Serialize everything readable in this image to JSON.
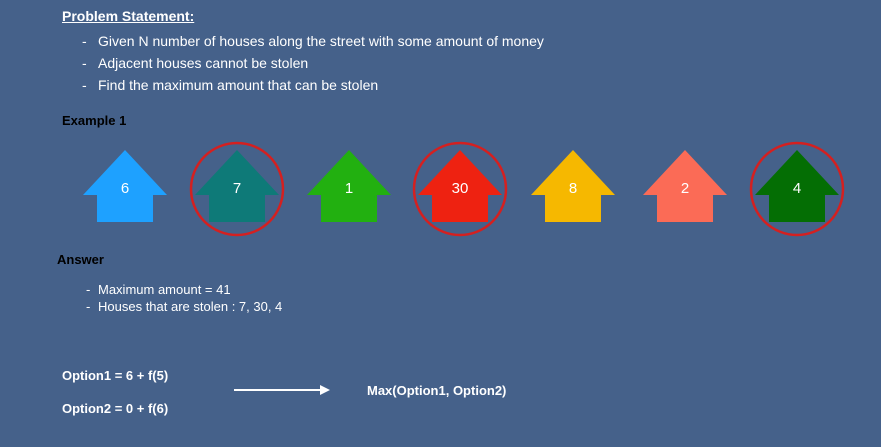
{
  "problem": {
    "title": "Problem Statement:",
    "bullets": [
      "Given N number of houses along the street with some amount of money",
      "Adjacent houses cannot be stolen",
      "Find the maximum amount that can be stolen"
    ]
  },
  "example": {
    "title": "Example 1",
    "houses": [
      {
        "value": "6",
        "color": "#1ea1ff",
        "circled": false
      },
      {
        "value": "7",
        "color": "#0e7a78",
        "circled": true
      },
      {
        "value": "1",
        "color": "#22b010",
        "circled": false
      },
      {
        "value": "30",
        "color": "#ee2211",
        "circled": true
      },
      {
        "value": "8",
        "color": "#f6b800",
        "circled": false
      },
      {
        "value": "2",
        "color": "#fb6b56",
        "circled": false
      },
      {
        "value": "4",
        "color": "#046e04",
        "circled": true
      }
    ],
    "circle_color": "#d42020"
  },
  "answer": {
    "title": "Answer",
    "lines": [
      "Maximum amount = 41",
      "Houses that are stolen : 7, 30, 4"
    ]
  },
  "recurrence": {
    "option1": "Option1 = 6 + f(5)",
    "option2": "Option2 = 0 + f(6)",
    "result": "Max(Option1, Option2)"
  }
}
